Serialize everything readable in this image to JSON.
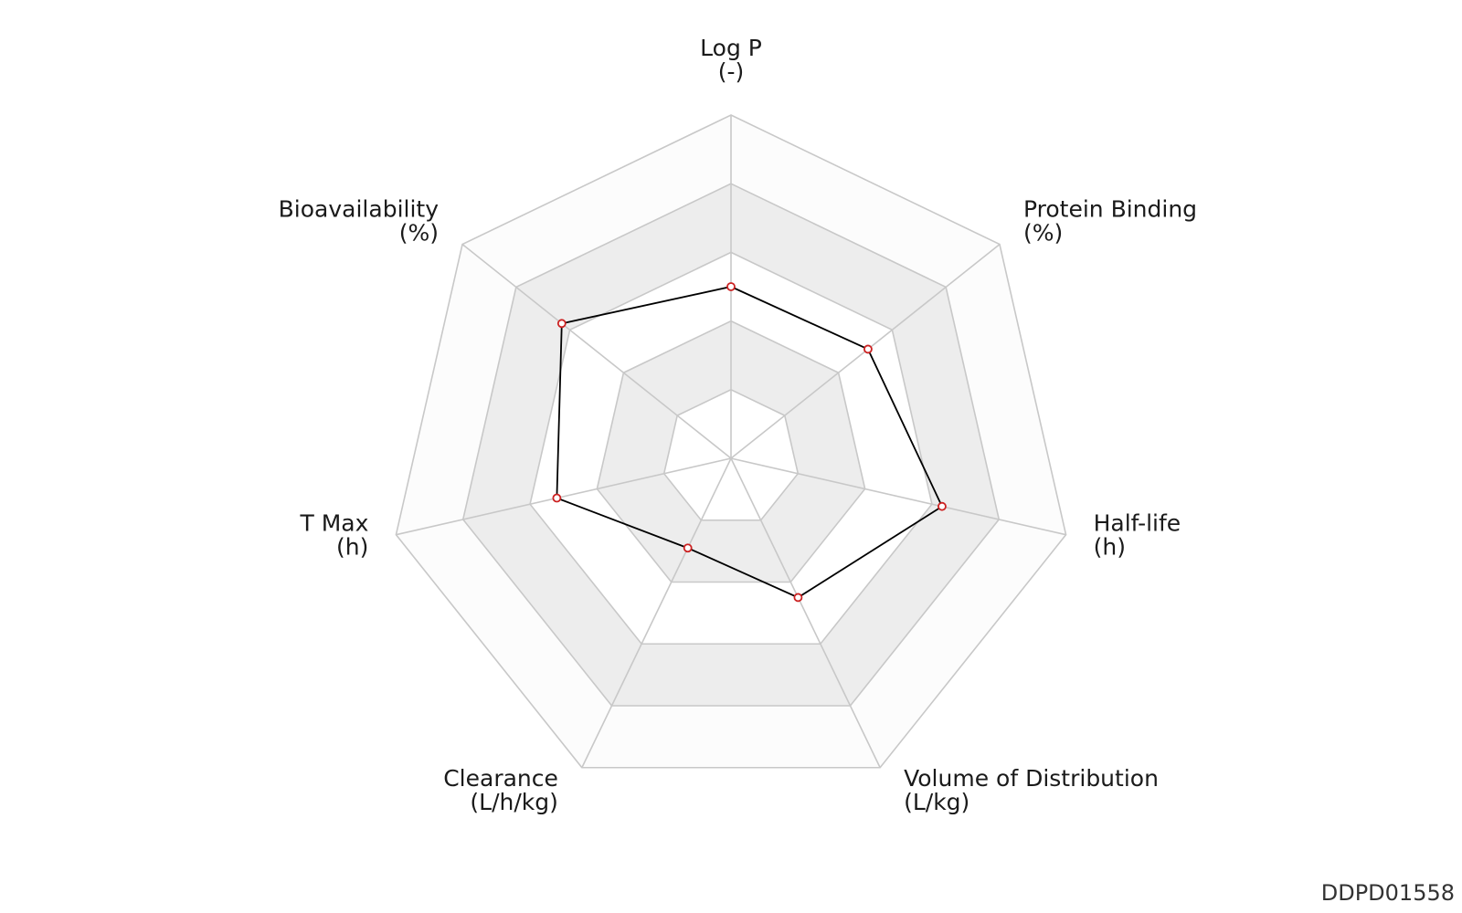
{
  "chart_data": {
    "type": "radar",
    "axes": [
      {
        "name": "Log P",
        "unit": "(-)"
      },
      {
        "name": "Protein Binding",
        "unit": "(%)"
      },
      {
        "name": "Half-life",
        "unit": "(h)"
      },
      {
        "name": "Volume of Distribution",
        "unit": "(L/kg)"
      },
      {
        "name": "Clearance",
        "unit": "(L/h/kg)"
      },
      {
        "name": "T Max",
        "unit": "(h)"
      },
      {
        "name": "Bioavailability",
        "unit": "(%)"
      }
    ],
    "values": [
      0.5,
      0.51,
      0.63,
      0.45,
      0.29,
      0.52,
      0.63
    ],
    "scale": [
      0,
      1
    ],
    "rings": 5,
    "ring_fills": [
      "#ffffff",
      "#ededed",
      "#ffffff",
      "#ededed",
      "#fcfcfc"
    ],
    "grid_color": "#c8c8c8",
    "line_color": "#000000",
    "marker_color": "#cc2222"
  },
  "footer": {
    "id": "DDPD01558"
  }
}
